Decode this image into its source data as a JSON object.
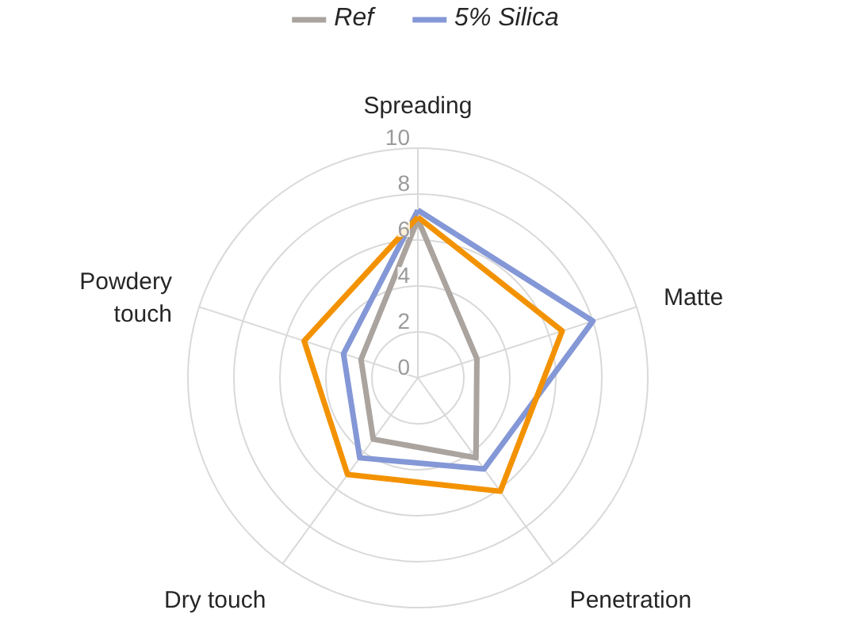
{
  "chart_data": {
    "type": "radar",
    "categories": [
      "Spreading",
      "Matte",
      "Penetration",
      "Dry touch",
      "Powdery\ntouch"
    ],
    "ylim": [
      0,
      10
    ],
    "yticks": [
      0,
      2,
      4,
      6,
      8,
      10
    ],
    "grid": true,
    "legend": "top",
    "series": [
      {
        "name": "Ref",
        "color": "#aaa39e",
        "values": [
          6.9,
          2.7,
          4.3,
          3.3,
          2.6
        ]
      },
      {
        "name": "5% Silica",
        "color": "#8497d6",
        "values": [
          7.3,
          8.0,
          4.9,
          4.3,
          3.4
        ]
      },
      {
        "color": "#f39200",
        "values": [
          7.0,
          6.6,
          6.1,
          5.2,
          5.2
        ]
      }
    ]
  }
}
